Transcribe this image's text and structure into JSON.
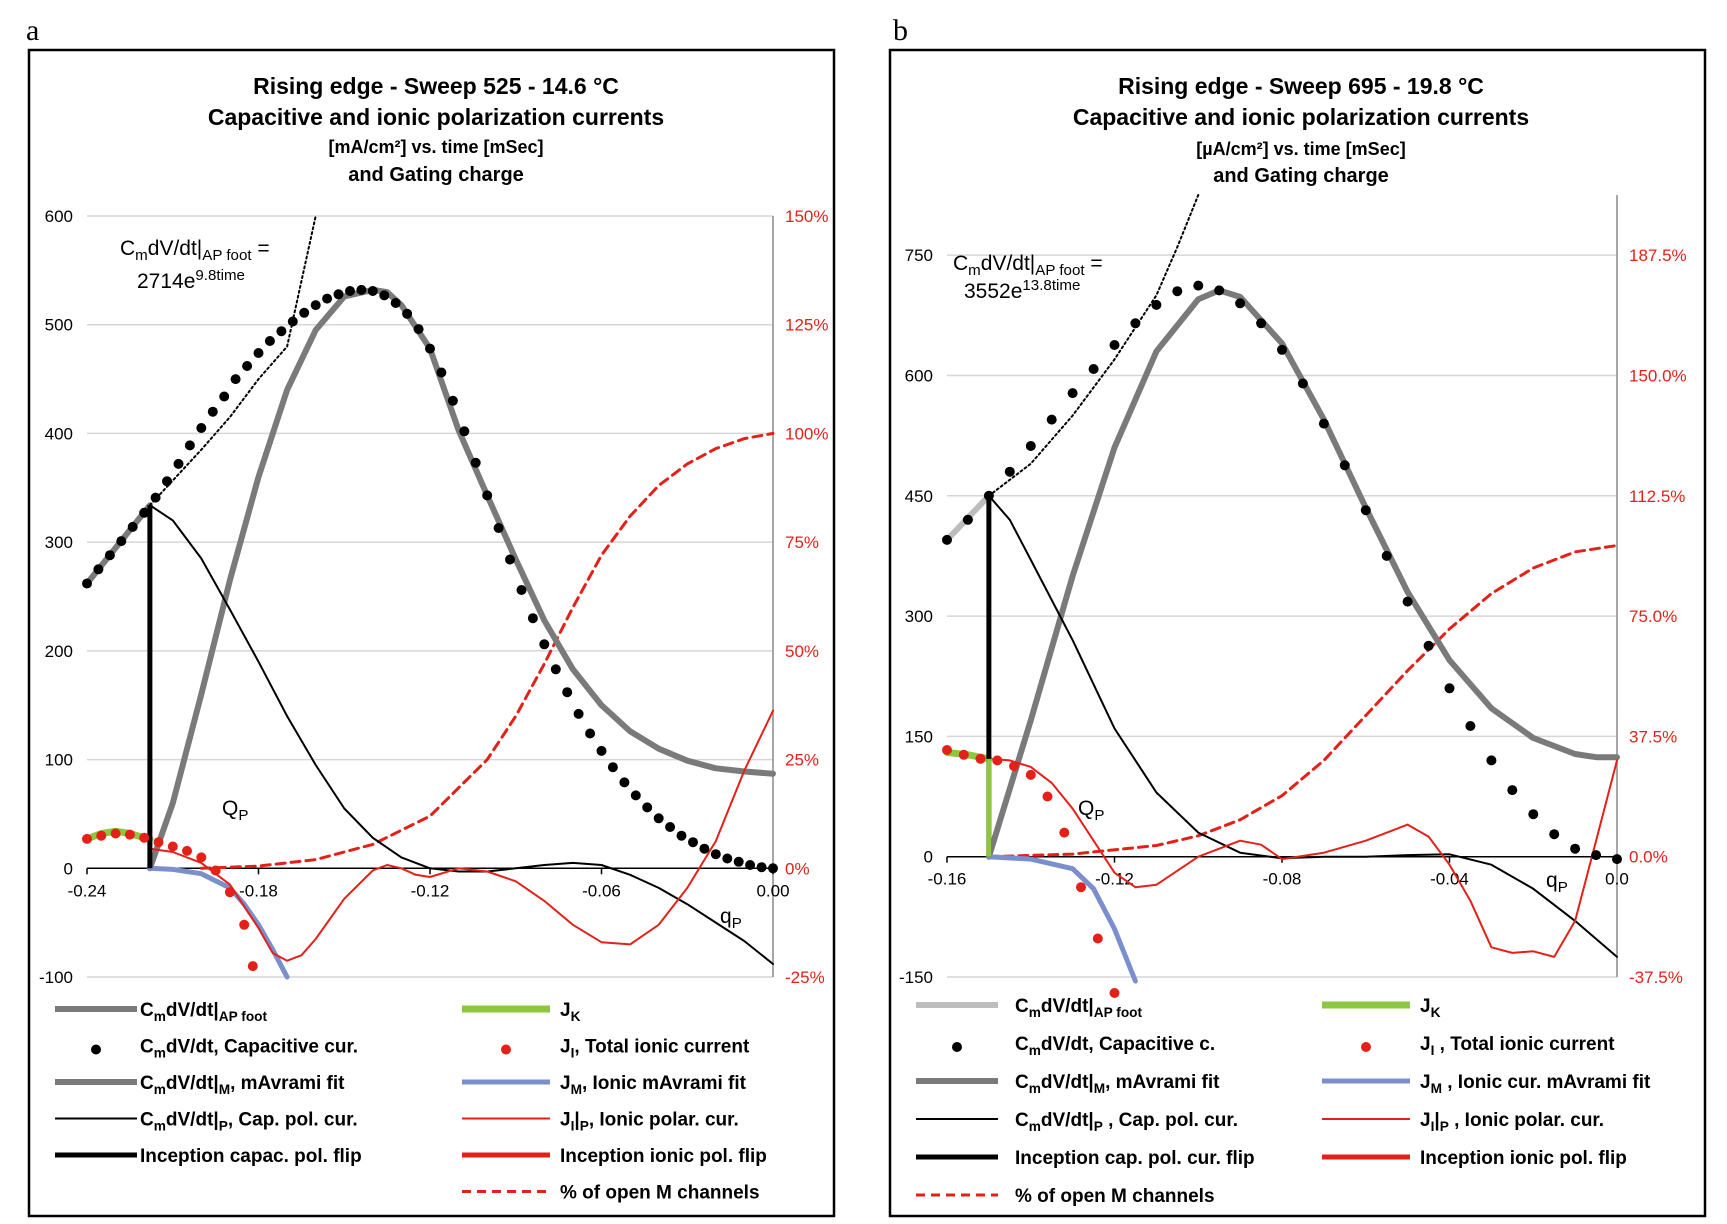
{
  "chart_data": [
    {
      "panel": "a",
      "type": "line",
      "title": [
        "Rising edge - Sweep 525 - 14.6 °C",
        "Capacitive and ionic polarization currents",
        "[mA/cm²] vs. time [mSec]",
        "and Gating charge"
      ],
      "x": {
        "min": -0.24,
        "max": 0.0,
        "ticks": [
          -0.24,
          -0.18,
          -0.12,
          -0.06,
          0.0
        ],
        "tick_labels": [
          "-0.24",
          "-0.18",
          "-0.12",
          "-0.06",
          "0.00"
        ]
      },
      "y_left": {
        "min": -100,
        "max": 600,
        "ticks": [
          -100,
          0,
          100,
          200,
          300,
          400,
          500,
          600
        ],
        "tick_labels": [
          "-100",
          "0",
          "100",
          "200",
          "300",
          "400",
          "500",
          "600"
        ]
      },
      "y_right": {
        "min": -25,
        "max": 150,
        "unit": "%",
        "ticks": [
          -25,
          0,
          25,
          50,
          75,
          100,
          125,
          150
        ],
        "tick_labels": [
          "-25%",
          "0%",
          "25%",
          "50%",
          "75%",
          "100%",
          "125%",
          "150%"
        ]
      },
      "annotations": {
        "formula_top": "CmdV/dt|AP foot =",
        "formula_bottom": "2714e9.8time",
        "qp": "QP",
        "qp_axis": "qP"
      },
      "inception_time": -0.218,
      "series": {
        "ap_foot": {
          "x": [
            -0.24,
            -0.218
          ],
          "y": [
            262,
            334
          ]
        },
        "exp_fit": {
          "x": [
            -0.218,
            -0.2,
            -0.19,
            -0.18,
            -0.17,
            -0.16
          ],
          "y": [
            334,
            385,
            415,
            450,
            480,
            600
          ]
        },
        "capacitive": {
          "x": [
            -0.24,
            -0.236,
            -0.232,
            -0.228,
            -0.224,
            -0.22,
            -0.216,
            -0.212,
            -0.208,
            -0.204,
            -0.2,
            -0.196,
            -0.192,
            -0.188,
            -0.184,
            -0.18,
            -0.176,
            -0.172,
            -0.168,
            -0.164,
            -0.16,
            -0.156,
            -0.152,
            -0.148,
            -0.144,
            -0.14,
            -0.136,
            -0.132,
            -0.128,
            -0.124,
            -0.12,
            -0.116,
            -0.112,
            -0.108,
            -0.104,
            -0.1,
            -0.096,
            -0.092,
            -0.088,
            -0.084,
            -0.08,
            -0.076,
            -0.072,
            -0.068,
            -0.064,
            -0.06,
            -0.056,
            -0.052,
            -0.048,
            -0.044,
            -0.04,
            -0.036,
            -0.032,
            -0.028,
            -0.024,
            -0.02,
            -0.016,
            -0.012,
            -0.008,
            -0.004,
            0.0
          ],
          "y": [
            262,
            275,
            288,
            301,
            314,
            327,
            341,
            356,
            372,
            389,
            405,
            420,
            434,
            450,
            462,
            474,
            485,
            494,
            503,
            511,
            518,
            524,
            528,
            531,
            532,
            531,
            527,
            520,
            510,
            496,
            478,
            456,
            430,
            402,
            373,
            343,
            313,
            284,
            256,
            230,
            206,
            183,
            162,
            142,
            124,
            108,
            93,
            79,
            67,
            56,
            46,
            38,
            30,
            24,
            18,
            13,
            9,
            6,
            3,
            1,
            0
          ]
        },
        "mavrami_fit": {
          "x": [
            -0.218,
            -0.21,
            -0.2,
            -0.19,
            -0.18,
            -0.17,
            -0.16,
            -0.15,
            -0.14,
            -0.135,
            -0.13,
            -0.12,
            -0.11,
            -0.1,
            -0.09,
            -0.08,
            -0.07,
            -0.06,
            -0.05,
            -0.04,
            -0.03,
            -0.02,
            -0.01,
            0.0
          ],
          "y": [
            0,
            60,
            160,
            265,
            360,
            440,
            495,
            526,
            532,
            530,
            518,
            478,
            403,
            343,
            284,
            228,
            183,
            150,
            126,
            110,
            99,
            92,
            89,
            87
          ]
        },
        "cap_pol": {
          "x": [
            -0.218,
            -0.21,
            -0.2,
            -0.19,
            -0.18,
            -0.17,
            -0.16,
            -0.15,
            -0.14,
            -0.13,
            -0.12,
            -0.11,
            -0.1,
            -0.09,
            -0.08,
            -0.07,
            -0.06,
            -0.05,
            -0.04,
            -0.03,
            -0.02,
            -0.01,
            0.0
          ],
          "y": [
            334,
            320,
            285,
            238,
            190,
            140,
            95,
            55,
            28,
            10,
            0,
            -3,
            -3,
            0,
            3,
            5,
            3,
            -6,
            -18,
            -33,
            -50,
            -67,
            -88
          ]
        },
        "jk": {
          "x": [
            -0.24,
            -0.235,
            -0.23,
            -0.225,
            -0.22,
            -0.218
          ],
          "y": [
            27,
            32,
            34,
            32,
            28,
            27
          ]
        },
        "ionic_total": {
          "x": [
            -0.24,
            -0.235,
            -0.23,
            -0.225,
            -0.22,
            -0.215,
            -0.21,
            -0.205,
            -0.2,
            -0.195,
            -0.19,
            -0.185,
            -0.182
          ],
          "y": [
            27,
            30,
            32,
            31,
            28,
            24,
            20,
            16,
            10,
            -2,
            -22,
            -52,
            -90
          ]
        },
        "ionic_mavrami": {
          "x": [
            -0.218,
            -0.21,
            -0.2,
            -0.19,
            -0.185,
            -0.18,
            -0.175,
            -0.17
          ],
          "y": [
            0,
            -1,
            -5,
            -18,
            -33,
            -52,
            -75,
            -100
          ]
        },
        "ionic_pol": {
          "x": [
            -0.218,
            -0.21,
            -0.2,
            -0.19,
            -0.18,
            -0.175,
            -0.17,
            -0.165,
            -0.16,
            -0.15,
            -0.14,
            -0.135,
            -0.13,
            -0.125,
            -0.12,
            -0.11,
            -0.1,
            -0.09,
            -0.08,
            -0.07,
            -0.06,
            -0.05,
            -0.04,
            -0.03,
            -0.02,
            -0.01,
            0.0
          ],
          "y": [
            18,
            15,
            5,
            -15,
            -55,
            -78,
            -85,
            -80,
            -65,
            -28,
            -2,
            3,
            0,
            -6,
            -8,
            0,
            -3,
            -12,
            -30,
            -52,
            -68,
            -70,
            -52,
            -18,
            25,
            90,
            145
          ]
        },
        "open_channels": {
          "x": [
            -0.2,
            -0.18,
            -0.16,
            -0.14,
            -0.12,
            -0.1,
            -0.09,
            -0.08,
            -0.07,
            -0.06,
            -0.05,
            -0.04,
            -0.03,
            -0.02,
            -0.01,
            0.0
          ],
          "y": [
            0,
            0.5,
            2,
            5.5,
            12,
            25,
            35,
            47,
            60,
            72,
            81,
            88,
            93,
            96.5,
            98.8,
            100
          ]
        }
      },
      "legend": [
        {
          "label": "CmdV/dt|AP foot",
          "style": "ap_foot"
        },
        {
          "label": "JK",
          "style": "jk"
        },
        {
          "label": "CmdV/dt, Capacitive cur.",
          "style": "dot_black"
        },
        {
          "label": "JI,  Total ionic current",
          "style": "dot_red"
        },
        {
          "label": "CmdV/dt|M, mAvrami fit",
          "style": "mavrami"
        },
        {
          "label": "JM, Ionic mAvrami fit",
          "style": "ionic_mavrami"
        },
        {
          "label": "CmdV/dt|P, Cap. pol. cur.",
          "style": "thin_black"
        },
        {
          "label": "JI|P, Ionic polar. cur.",
          "style": "thin_red"
        },
        {
          "label": "Inception capac. pol. flip",
          "style": "thick_black"
        },
        {
          "label": "Inception ionic pol. flip",
          "style": "thick_red"
        },
        {
          "label": "",
          "style": "none"
        },
        {
          "label": "% of open M channels",
          "style": "dash_red"
        }
      ]
    },
    {
      "panel": "b",
      "type": "line",
      "title": [
        "Rising edge - Sweep 695 - 19.8 °C",
        "Capacitive and ionic polarization currents",
        "[µA/cm²] vs. time [mSec]",
        "and Gating charge"
      ],
      "x": {
        "min": -0.16,
        "max": 0.0,
        "ticks": [
          -0.16,
          -0.12,
          -0.08,
          -0.04,
          0.0
        ],
        "tick_labels": [
          "-0.16",
          "-0.12",
          "-0.08",
          "-0.04",
          "0.0"
        ]
      },
      "y_left": {
        "min": -150,
        "max": 825,
        "ticks": [
          -150,
          0,
          150,
          300,
          450,
          600,
          750
        ],
        "tick_labels": [
          "-150",
          "0",
          "150",
          "300",
          "450",
          "600",
          "750"
        ]
      },
      "y_right": {
        "min": -37.5,
        "max": 206.25,
        "unit": "%",
        "ticks": [
          -37.5,
          0,
          37.5,
          75,
          112.5,
          150,
          187.5
        ],
        "tick_labels": [
          "-37.5%",
          "0.0%",
          "37.5%",
          "75.0%",
          "112.5%",
          "150.0%",
          "187.5%"
        ]
      },
      "annotations": {
        "formula_top": "CmdV/dt|AP foot =",
        "formula_bottom": "3552e13.8time",
        "qp": "QP",
        "qp_axis": "qP"
      },
      "inception_time": -0.15,
      "series": {
        "ap_foot": {
          "x": [
            -0.16,
            -0.15
          ],
          "y": [
            395,
            450
          ]
        },
        "exp_fit": {
          "x": [
            -0.15,
            -0.14,
            -0.13,
            -0.12,
            -0.11,
            -0.105,
            -0.1
          ],
          "y": [
            450,
            490,
            550,
            620,
            700,
            760,
            825
          ]
        },
        "capacitive": {
          "x": [
            -0.16,
            -0.155,
            -0.15,
            -0.145,
            -0.14,
            -0.135,
            -0.13,
            -0.125,
            -0.12,
            -0.115,
            -0.11,
            -0.105,
            -0.1,
            -0.095,
            -0.09,
            -0.085,
            -0.08,
            -0.075,
            -0.07,
            -0.065,
            -0.06,
            -0.055,
            -0.05,
            -0.045,
            -0.04,
            -0.035,
            -0.03,
            -0.025,
            -0.02,
            -0.015,
            -0.01,
            -0.005,
            0.0
          ],
          "y": [
            395,
            420,
            450,
            480,
            512,
            545,
            578,
            608,
            638,
            665,
            688,
            705,
            712,
            706,
            690,
            665,
            632,
            590,
            540,
            488,
            432,
            375,
            318,
            263,
            210,
            163,
            120,
            83,
            53,
            28,
            10,
            2,
            -3
          ]
        },
        "mavrami_fit": {
          "x": [
            -0.15,
            -0.14,
            -0.13,
            -0.12,
            -0.11,
            -0.1,
            -0.095,
            -0.09,
            -0.08,
            -0.07,
            -0.06,
            -0.05,
            -0.04,
            -0.03,
            -0.02,
            -0.01,
            -0.005,
            0.0
          ],
          "y": [
            0,
            170,
            350,
            510,
            630,
            695,
            706,
            698,
            640,
            545,
            435,
            330,
            245,
            185,
            148,
            128,
            124,
            124
          ]
        },
        "cap_pol": {
          "x": [
            -0.15,
            -0.145,
            -0.14,
            -0.13,
            -0.12,
            -0.11,
            -0.1,
            -0.09,
            -0.08,
            -0.07,
            -0.06,
            -0.05,
            -0.04,
            -0.03,
            -0.02,
            -0.01,
            0.0
          ],
          "y": [
            450,
            420,
            370,
            270,
            160,
            80,
            30,
            5,
            -2,
            0,
            0,
            2,
            3,
            -10,
            -40,
            -80,
            -125
          ]
        },
        "jk": {
          "x": [
            -0.16,
            -0.155,
            -0.15
          ],
          "y": [
            130,
            127,
            122
          ]
        },
        "ionic_total": {
          "x": [
            -0.16,
            -0.156,
            -0.152,
            -0.148,
            -0.144,
            -0.14,
            -0.136,
            -0.132,
            -0.128,
            -0.124,
            -0.12
          ],
          "y": [
            133,
            127,
            122,
            120,
            113,
            102,
            75,
            30,
            -38,
            -102,
            -170
          ]
        },
        "ionic_mavrami": {
          "x": [
            -0.15,
            -0.14,
            -0.13,
            -0.125,
            -0.12,
            -0.115
          ],
          "y": [
            0,
            -3,
            -15,
            -40,
            -90,
            -155
          ]
        },
        "ionic_pol": {
          "x": [
            -0.15,
            -0.145,
            -0.14,
            -0.135,
            -0.13,
            -0.125,
            -0.12,
            -0.115,
            -0.11,
            -0.1,
            -0.09,
            -0.085,
            -0.08,
            -0.07,
            -0.06,
            -0.05,
            -0.045,
            -0.04,
            -0.035,
            -0.03,
            -0.025,
            -0.02,
            -0.015,
            -0.01,
            -0.005,
            0.0
          ],
          "y": [
            122,
            120,
            112,
            92,
            60,
            20,
            -20,
            -38,
            -35,
            0,
            20,
            15,
            -3,
            5,
            20,
            40,
            25,
            -10,
            -55,
            -113,
            -120,
            -118,
            -125,
            -80,
            20,
            120
          ]
        },
        "open_channels": {
          "x": [
            -0.15,
            -0.13,
            -0.11,
            -0.1,
            -0.09,
            -0.08,
            -0.07,
            -0.06,
            -0.05,
            -0.04,
            -0.03,
            -0.02,
            -0.01,
            0.0
          ],
          "y": [
            0,
            0.8,
            3.5,
            6.5,
            11.5,
            19,
            30,
            44,
            58,
            71,
            82,
            90,
            95,
            97
          ]
        }
      },
      "legend": [
        {
          "label": "CmdV/dt|AP foot",
          "style": "ap_foot_light"
        },
        {
          "label": "JK",
          "style": "jk"
        },
        {
          "label": "CmdV/dt, Capacitive c.",
          "style": "dot_black"
        },
        {
          "label": "JI ,  Total ionic current",
          "style": "dot_red"
        },
        {
          "label": "CmdV/dt|M,  mAvrami fit",
          "style": "mavrami"
        },
        {
          "label": "JM , Ionic cur. mAvrami fit",
          "style": "ionic_mavrami"
        },
        {
          "label": "CmdV/dt|P , Cap. pol. cur.",
          "style": "thin_black"
        },
        {
          "label": "JI|P , Ionic polar. cur.",
          "style": "thin_red"
        },
        {
          "label": "Inception cap. pol. cur. flip",
          "style": "thick_black"
        },
        {
          "label": "Inception ionic pol. flip",
          "style": "thick_red"
        },
        {
          "label": "% of open M channels",
          "style": "dash_red"
        },
        {
          "label": "",
          "style": "none"
        }
      ]
    }
  ]
}
